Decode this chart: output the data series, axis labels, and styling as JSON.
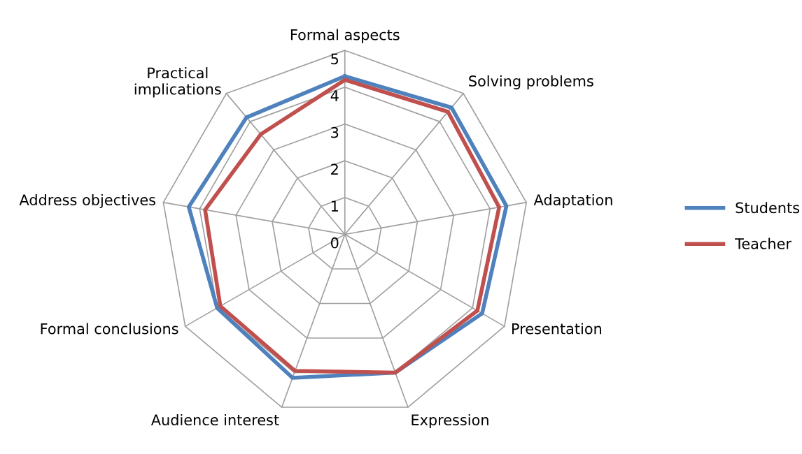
{
  "chart_data": {
    "type": "radar",
    "categories": [
      "Formal aspects",
      "Solving problems",
      "Adaptation",
      "Presentation",
      "Expression",
      "Audience interest",
      "Formal conclusions",
      "Address objectives",
      "Practical\nimplications"
    ],
    "series": [
      {
        "name": "Students",
        "color": "#4f81bd",
        "values": [
          4.3,
          4.5,
          4.45,
          4.3,
          4.0,
          4.15,
          4.0,
          4.3,
          4.15
        ]
      },
      {
        "name": "Teacher",
        "color": "#c0504d",
        "values": [
          4.2,
          4.35,
          4.25,
          4.15,
          4.0,
          3.95,
          3.9,
          3.85,
          3.55
        ]
      }
    ],
    "ylim": [
      0,
      5
    ],
    "yticks": [
      0,
      1,
      2,
      3,
      4,
      5
    ],
    "grid": true,
    "legend": "right",
    "marker": "none",
    "line_style": "solid"
  }
}
